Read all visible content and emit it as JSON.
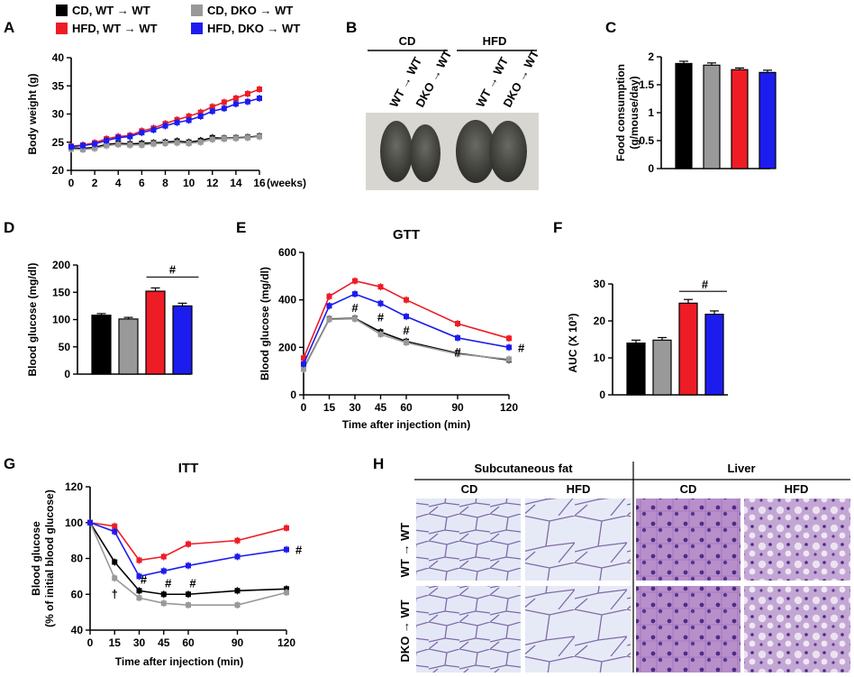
{
  "colors": {
    "wt_cd": "#000000",
    "dko_cd": "#999999",
    "wt_hfd": "#ee1c25",
    "dko_hfd": "#1c1cee"
  },
  "legend": {
    "items": [
      {
        "label": "CD, WT → WT",
        "color": "#000000"
      },
      {
        "label": "CD, DKO → WT",
        "color": "#999999"
      },
      {
        "label": "HFD, WT → WT",
        "color": "#ee1c25"
      },
      {
        "label": "HFD, DKO → WT",
        "color": "#1c1cee"
      }
    ]
  },
  "panel_labels": {
    "a": "A",
    "b": "B",
    "c": "C",
    "d": "D",
    "e": "E",
    "f": "F",
    "g": "G",
    "h": "H"
  },
  "photo_b": {
    "diet_cd": "CD",
    "diet_hfd": "HFD",
    "labels": [
      "WT → WT",
      "DKO → WT",
      "WT → WT",
      "DKO → WT"
    ]
  },
  "histology_h": {
    "group_fat": "Subcutaneous fat",
    "group_liver": "Liver",
    "cols": [
      "CD",
      "HFD",
      "CD",
      "HFD"
    ],
    "rows": [
      "WT → WT",
      "DKO → WT"
    ]
  },
  "chart_data": [
    {
      "id": "A",
      "type": "line",
      "title": "",
      "xlabel": "(weeks)",
      "ylabel": "Body weight (g)",
      "xlim": [
        0,
        16
      ],
      "ylim": [
        20,
        40
      ],
      "xticks": [
        0,
        2,
        4,
        6,
        8,
        10,
        12,
        14,
        16
      ],
      "yticks": [
        20,
        25,
        30,
        35,
        40
      ],
      "x": [
        0,
        1,
        2,
        3,
        4,
        5,
        6,
        7,
        8,
        9,
        10,
        11,
        12,
        13,
        14,
        15,
        16
      ],
      "series": [
        {
          "name": "CD, WT → WT",
          "color": "#000000",
          "values": [
            24.0,
            23.9,
            24.1,
            24.6,
            24.8,
            24.7,
            24.8,
            24.9,
            25.0,
            25.2,
            25.0,
            25.3,
            25.8,
            25.7,
            25.8,
            25.9,
            26.1
          ]
        },
        {
          "name": "CD, DKO → WT",
          "color": "#999999",
          "values": [
            23.8,
            23.7,
            23.9,
            24.4,
            24.6,
            24.5,
            24.5,
            24.7,
            24.8,
            24.9,
            24.8,
            25.0,
            25.5,
            25.6,
            25.7,
            25.8,
            26.0
          ]
        },
        {
          "name": "HFD, WT → WT",
          "color": "#ee1c25",
          "values": [
            24.3,
            24.5,
            24.9,
            25.6,
            26.0,
            26.2,
            27.0,
            27.5,
            28.3,
            29.0,
            29.6,
            30.3,
            31.3,
            32.1,
            32.8,
            33.6,
            34.4
          ]
        },
        {
          "name": "HFD, DKO → WT",
          "color": "#1c1cee",
          "values": [
            24.2,
            24.4,
            24.7,
            25.3,
            25.8,
            26.0,
            26.7,
            27.2,
            27.9,
            28.5,
            28.9,
            29.6,
            30.5,
            31.0,
            31.8,
            32.2,
            32.8
          ]
        }
      ]
    },
    {
      "id": "C",
      "type": "bar",
      "title": "",
      "xlabel": "",
      "ylabel_lines": [
        "Food consumption",
        "(g/mouse/day)"
      ],
      "ylim": [
        0,
        2
      ],
      "yticks": [
        0,
        0.5,
        1,
        1.5,
        2
      ],
      "ytick_labels": [
        "0",
        "0.5",
        "1",
        "1.5",
        "2"
      ],
      "categories": [
        "CD, WT → WT",
        "CD, DKO → WT",
        "HFD, WT → WT",
        "HFD, DKO → WT"
      ],
      "values": [
        1.88,
        1.85,
        1.77,
        1.72
      ],
      "errors": [
        0.04,
        0.04,
        0.03,
        0.04
      ]
    },
    {
      "id": "D",
      "type": "bar",
      "title": "",
      "xlabel": "",
      "ylabel": "Blood glucose (mg/dl)",
      "ylim": [
        0,
        200
      ],
      "yticks": [
        0,
        50,
        100,
        150,
        200
      ],
      "categories": [
        "CD, WT → WT",
        "CD, DKO → WT",
        "HFD, WT → WT",
        "HFD, DKO → WT"
      ],
      "values": [
        108,
        101,
        152,
        125
      ],
      "errors": [
        3,
        3,
        6,
        5
      ],
      "annotation": "#"
    },
    {
      "id": "E",
      "type": "line",
      "title": "GTT",
      "xlabel": "Time after injection (min)",
      "ylabel": "Blood glucose (mg/dl)",
      "xlim": [
        0,
        120
      ],
      "ylim": [
        0,
        600
      ],
      "xticks": [
        0,
        15,
        30,
        45,
        60,
        90,
        120
      ],
      "yticks": [
        0,
        200,
        400,
        600
      ],
      "x": [
        0,
        15,
        30,
        45,
        60,
        90,
        120
      ],
      "series": [
        {
          "name": "CD, WT → WT",
          "color": "#000000",
          "values": [
            110,
            320,
            322,
            265,
            225,
            175,
            147
          ]
        },
        {
          "name": "CD, DKO → WT",
          "color": "#999999",
          "values": [
            108,
            318,
            320,
            255,
            220,
            172,
            150
          ]
        },
        {
          "name": "HFD, WT → WT",
          "color": "#ee1c25",
          "values": [
            155,
            415,
            480,
            455,
            400,
            300,
            238
          ]
        },
        {
          "name": "HFD, DKO → WT",
          "color": "#1c1cee",
          "values": [
            130,
            375,
            425,
            385,
            330,
            240,
            200
          ]
        }
      ],
      "annotations": [
        "#",
        "#",
        "#",
        "#",
        "#"
      ]
    },
    {
      "id": "F",
      "type": "bar",
      "title": "",
      "xlabel": "",
      "ylabel": "AUC (X 10³)",
      "ylim": [
        0,
        30
      ],
      "yticks": [
        0,
        10,
        20,
        30
      ],
      "categories": [
        "CD, WT → WT",
        "CD, DKO → WT",
        "HFD, WT → WT",
        "HFD, DKO → WT"
      ],
      "values": [
        14,
        14.8,
        24.8,
        21.8
      ],
      "errors": [
        0.8,
        0.7,
        1.0,
        0.9
      ],
      "annotation": "#"
    },
    {
      "id": "G",
      "type": "line",
      "title": "ITT",
      "xlabel": "Time after injection (min)",
      "ylabel_lines": [
        "Blood glucose",
        "(% of initial blood glucose)"
      ],
      "xlim": [
        0,
        120
      ],
      "ylim": [
        40,
        120
      ],
      "xticks": [
        0,
        15,
        30,
        45,
        60,
        90,
        120
      ],
      "yticks": [
        40,
        60,
        80,
        100,
        120
      ],
      "x": [
        0,
        15,
        30,
        45,
        60,
        90,
        120
      ],
      "series": [
        {
          "name": "CD, WT → WT",
          "color": "#000000",
          "values": [
            100,
            78,
            62,
            60,
            60,
            62,
            63
          ]
        },
        {
          "name": "CD, DKO → WT",
          "color": "#999999",
          "values": [
            100,
            69,
            58,
            55,
            54,
            54,
            61
          ]
        },
        {
          "name": "HFD, WT → WT",
          "color": "#ee1c25",
          "values": [
            100,
            98,
            79,
            81,
            88,
            90,
            97
          ]
        },
        {
          "name": "HFD, DKO → WT",
          "color": "#1c1cee",
          "values": [
            100,
            95,
            70,
            73,
            76,
            81,
            85
          ]
        }
      ],
      "annotations": [
        "#",
        "#",
        "#",
        "#",
        "†"
      ]
    }
  ]
}
